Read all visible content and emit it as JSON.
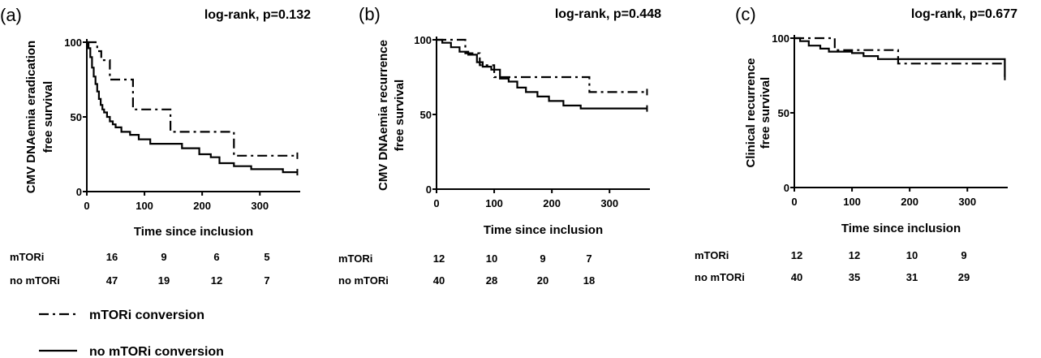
{
  "chart_data": [
    {
      "type": "line",
      "panel_label": "(a)",
      "annotation": "log-rank, p=0.132",
      "ylabel_line1": "CMV DNAemia eradication",
      "ylabel_line2": "free survival",
      "xlabel": "Time since inclusion",
      "xlim": [
        0,
        370
      ],
      "ylim": [
        0,
        100
      ],
      "x_ticks": [
        0,
        100,
        200,
        300
      ],
      "y_ticks": [
        0,
        50,
        100
      ],
      "series": [
        {
          "name": "mTORi conversion",
          "x": [
            0,
            18,
            25,
            40,
            60,
            80,
            100,
            145,
            185,
            255,
            365
          ],
          "y": [
            100,
            94,
            88,
            75,
            75,
            55,
            55,
            40,
            40,
            24,
            24
          ]
        },
        {
          "name": "no mTORi conversion",
          "x": [
            0,
            3,
            6,
            9,
            12,
            15,
            18,
            21,
            24,
            27,
            30,
            35,
            40,
            45,
            50,
            60,
            75,
            90,
            110,
            135,
            165,
            195,
            215,
            230,
            255,
            285,
            310,
            340,
            365
          ],
          "y": [
            100,
            96,
            90,
            83,
            77,
            72,
            67,
            62,
            58,
            55,
            53,
            50,
            47,
            45,
            43,
            40,
            38,
            35,
            32,
            32,
            29,
            25,
            23,
            19,
            17,
            15,
            15,
            13,
            13
          ]
        }
      ],
      "risk_table": {
        "rows": [
          {
            "label": "mTORi",
            "values": [
              "16",
              "9",
              "6",
              "5"
            ]
          },
          {
            "label": "no mTORi",
            "values": [
              "47",
              "19",
              "12",
              "7"
            ]
          }
        ]
      }
    },
    {
      "type": "line",
      "panel_label": "(b)",
      "annotation": "log-rank, p=0.448",
      "ylabel_line1": "CMV DNAemia recurrence",
      "ylabel_line2": "free survival",
      "xlabel": "Time since inclusion",
      "xlim": [
        0,
        370
      ],
      "ylim": [
        0,
        100
      ],
      "x_ticks": [
        0,
        100,
        200,
        300
      ],
      "y_ticks": [
        0,
        50,
        100
      ],
      "series": [
        {
          "name": "mTORi conversion",
          "x": [
            0,
            25,
            50,
            75,
            100,
            265,
            365
          ],
          "y": [
            100,
            100,
            91,
            83,
            75,
            65,
            65
          ]
        },
        {
          "name": "no mTORi conversion",
          "x": [
            0,
            10,
            25,
            40,
            55,
            70,
            80,
            95,
            110,
            125,
            140,
            155,
            175,
            195,
            220,
            250,
            365
          ],
          "y": [
            100,
            98,
            95,
            92,
            90,
            85,
            82,
            80,
            74,
            72,
            68,
            65,
            62,
            59,
            56,
            54,
            54
          ]
        }
      ],
      "risk_table": {
        "rows": [
          {
            "label": "mTORi",
            "values": [
              "12",
              "10",
              "9",
              "7"
            ]
          },
          {
            "label": "no mTORi",
            "values": [
              "40",
              "28",
              "20",
              "18"
            ]
          }
        ]
      }
    },
    {
      "type": "line",
      "panel_label": "(c)",
      "annotation": "log-rank, p=0.677",
      "ylabel_line1": "Clinical recurrence",
      "ylabel_line2": "free survival",
      "xlabel": "Time since inclusion",
      "xlim": [
        0,
        370
      ],
      "ylim": [
        0,
        100
      ],
      "x_ticks": [
        0,
        100,
        200,
        300
      ],
      "y_ticks": [
        0,
        50,
        100
      ],
      "series": [
        {
          "name": "mTORi conversion",
          "x": [
            0,
            70,
            180,
            365
          ],
          "y": [
            100,
            92,
            83,
            83
          ]
        },
        {
          "name": "no mTORi conversion",
          "x": [
            0,
            10,
            25,
            45,
            60,
            100,
            120,
            145,
            185,
            365,
            365
          ],
          "y": [
            100,
            98,
            95,
            93,
            91,
            90,
            88,
            86,
            86,
            86,
            74
          ]
        }
      ],
      "risk_table": {
        "rows": [
          {
            "label": "mTORi",
            "values": [
              "12",
              "12",
              "10",
              "9"
            ]
          },
          {
            "label": "no mTORi",
            "values": [
              "40",
              "35",
              "31",
              "29"
            ]
          }
        ]
      }
    }
  ],
  "legend": [
    {
      "label": "mTORi conversion",
      "style": "dash-dot"
    },
    {
      "label": "no mTORi conversion",
      "style": "solid"
    }
  ]
}
